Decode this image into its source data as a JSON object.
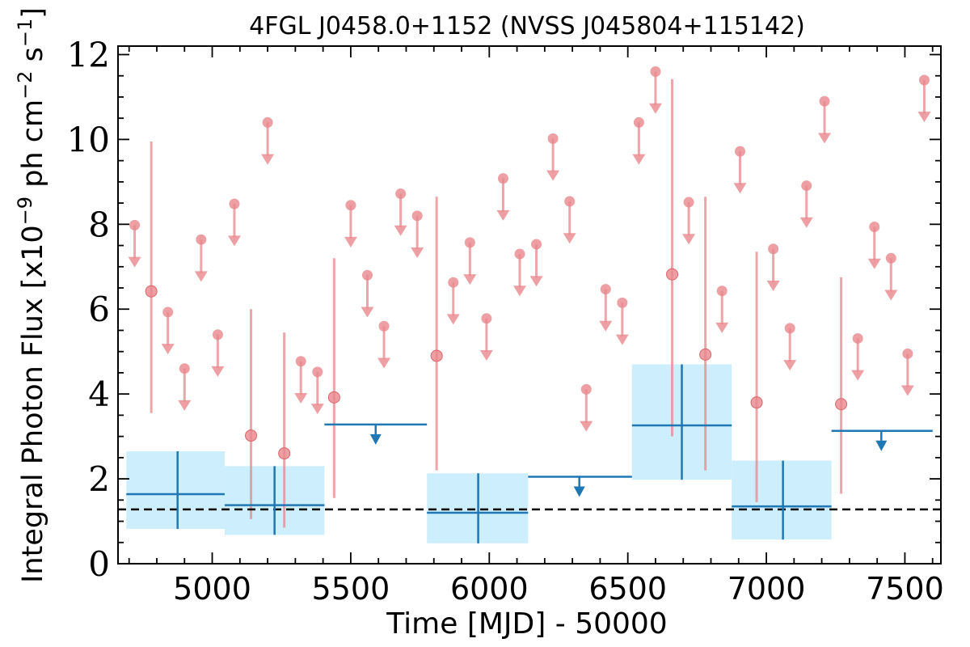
{
  "chart_data": {
    "type": "scatter",
    "title": "4FGL J0458.0+1152 (NVSS J045804+115142)",
    "xlabel": "Time [MJD] - 50000",
    "ylabel": "Integral Photon Flux [x10^-9 ph cm^-2 s^-1]",
    "ylabel_parts": {
      "prefix": "Integral Photon Flux [x10",
      "exp1": "−9",
      "mid": " ph cm",
      "exp2": "−2",
      "mid2": " s",
      "exp3": "−1",
      "suffix": "]"
    },
    "xlim": [
      4660,
      7630
    ],
    "ylim": [
      0,
      12.2
    ],
    "x_ticks": [
      5000,
      5500,
      6000,
      6500,
      7000,
      7500
    ],
    "y_ticks": [
      0,
      2,
      4,
      6,
      8,
      10,
      12
    ],
    "average_flux": 1.28,
    "colors": {
      "short_bins": "#e8878c",
      "long_bins": "#1f77b4",
      "long_band": "#cdeefc",
      "average_line": "#000000"
    },
    "short_bins_detections": [
      {
        "x": 4780,
        "y": 6.42,
        "lo": 3.55,
        "hi": 9.95
      },
      {
        "x": 5140,
        "y": 3.02,
        "lo": 1.05,
        "hi": 6.0
      },
      {
        "x": 5260,
        "y": 2.6,
        "lo": 0.85,
        "hi": 5.45
      },
      {
        "x": 5440,
        "y": 3.92,
        "lo": 1.55,
        "hi": 7.2
      },
      {
        "x": 5810,
        "y": 4.9,
        "lo": 2.2,
        "hi": 8.65
      },
      {
        "x": 6660,
        "y": 6.82,
        "lo": 3.0,
        "hi": 11.42
      },
      {
        "x": 6780,
        "y": 4.93,
        "lo": 2.2,
        "hi": 8.65
      },
      {
        "x": 6965,
        "y": 3.8,
        "lo": 1.45,
        "hi": 7.35
      },
      {
        "x": 7270,
        "y": 3.76,
        "lo": 1.65,
        "hi": 6.75
      }
    ],
    "short_bins_upper_limits": [
      {
        "x": 4720,
        "y": 7.98
      },
      {
        "x": 4840,
        "y": 5.93
      },
      {
        "x": 4900,
        "y": 4.6
      },
      {
        "x": 4960,
        "y": 7.64
      },
      {
        "x": 5020,
        "y": 5.4
      },
      {
        "x": 5080,
        "y": 8.48
      },
      {
        "x": 5200,
        "y": 10.4
      },
      {
        "x": 5320,
        "y": 4.77
      },
      {
        "x": 5380,
        "y": 4.52
      },
      {
        "x": 5500,
        "y": 8.45
      },
      {
        "x": 5560,
        "y": 6.8
      },
      {
        "x": 5620,
        "y": 5.6
      },
      {
        "x": 5680,
        "y": 8.72
      },
      {
        "x": 5740,
        "y": 8.2
      },
      {
        "x": 5870,
        "y": 6.63
      },
      {
        "x": 5930,
        "y": 7.57
      },
      {
        "x": 5990,
        "y": 5.78
      },
      {
        "x": 6050,
        "y": 9.08
      },
      {
        "x": 6110,
        "y": 7.3
      },
      {
        "x": 6170,
        "y": 7.53
      },
      {
        "x": 6230,
        "y": 10.02
      },
      {
        "x": 6290,
        "y": 8.54
      },
      {
        "x": 6350,
        "y": 4.11
      },
      {
        "x": 6420,
        "y": 6.47
      },
      {
        "x": 6480,
        "y": 6.15
      },
      {
        "x": 6540,
        "y": 10.4
      },
      {
        "x": 6600,
        "y": 11.6
      },
      {
        "x": 6720,
        "y": 8.52
      },
      {
        "x": 6840,
        "y": 6.43
      },
      {
        "x": 6905,
        "y": 9.72
      },
      {
        "x": 7025,
        "y": 7.42
      },
      {
        "x": 7085,
        "y": 5.55
      },
      {
        "x": 7145,
        "y": 8.91
      },
      {
        "x": 7210,
        "y": 10.9
      },
      {
        "x": 7330,
        "y": 5.31
      },
      {
        "x": 7390,
        "y": 7.94
      },
      {
        "x": 7450,
        "y": 7.2
      },
      {
        "x": 7510,
        "y": 4.95
      },
      {
        "x": 7570,
        "y": 11.4
      }
    ],
    "long_bins_detections": [
      {
        "x": 4875,
        "x0": 4690,
        "x1": 5045,
        "y": 1.64,
        "lo": 0.82,
        "hi": 2.65
      },
      {
        "x": 5225,
        "x0": 5045,
        "x1": 5405,
        "y": 1.38,
        "lo": 0.68,
        "hi": 2.3
      },
      {
        "x": 5960,
        "x0": 5775,
        "x1": 6140,
        "y": 1.2,
        "lo": 0.48,
        "hi": 2.13
      },
      {
        "x": 6695,
        "x0": 6515,
        "x1": 6875,
        "y": 3.26,
        "lo": 1.98,
        "hi": 4.7
      },
      {
        "x": 7060,
        "x0": 6875,
        "x1": 7235,
        "y": 1.35,
        "lo": 0.57,
        "hi": 2.43
      }
    ],
    "long_bins_upper_limits": [
      {
        "x": 5590,
        "x0": 5405,
        "x1": 5775,
        "y": 3.28
      },
      {
        "x": 6325,
        "x0": 6140,
        "x1": 6515,
        "y": 2.05
      },
      {
        "x": 7415,
        "x0": 7235,
        "x1": 7600,
        "y": 3.13
      }
    ]
  }
}
